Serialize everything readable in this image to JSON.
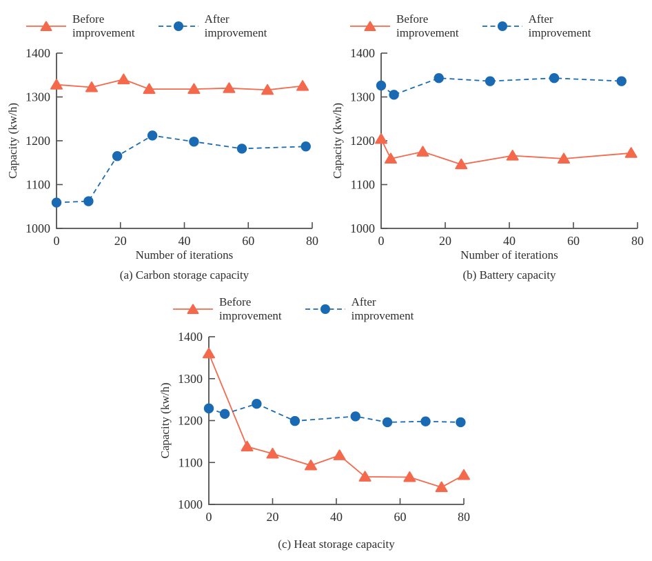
{
  "colors": {
    "before": "#f4694c",
    "after": "#1a6ab3",
    "axis": "#4f4f4f",
    "text": "#2e2e2e",
    "background": "#ffffff"
  },
  "legend": {
    "before_label": "Before\nimprovement",
    "after_label": "After\nimprovement"
  },
  "chart_data": [
    {
      "id": "a",
      "type": "line",
      "caption": "(a) Carbon storage capacity",
      "xlabel": "Number of iterations",
      "ylabel": "Capacity (kw/h)",
      "xlim": [
        0,
        80
      ],
      "ylim": [
        1000,
        1400
      ],
      "xticks": [
        0,
        20,
        40,
        60,
        80
      ],
      "yticks": [
        1000,
        1100,
        1200,
        1300,
        1400
      ],
      "grid": false,
      "legend_position": "top",
      "series": [
        {
          "name": "Before improvement",
          "marker": "triangle",
          "linestyle": "solid",
          "color_key": "before",
          "x": [
            0,
            11,
            21,
            29,
            43,
            54,
            66,
            77
          ],
          "y": [
            1328,
            1322,
            1340,
            1318,
            1318,
            1320,
            1316,
            1325
          ]
        },
        {
          "name": "After improvement",
          "marker": "circle",
          "linestyle": "dashed",
          "color_key": "after",
          "x": [
            0,
            10,
            19,
            30,
            43,
            58,
            78
          ],
          "y": [
            1059,
            1062,
            1165,
            1212,
            1198,
            1182,
            1187
          ]
        }
      ]
    },
    {
      "id": "b",
      "type": "line",
      "caption": "(b) Battery capacity",
      "xlabel": "Number of iterations",
      "ylabel": "Capacity (kw/h)",
      "xlim": [
        0,
        80
      ],
      "ylim": [
        1000,
        1400
      ],
      "xticks": [
        0,
        20,
        40,
        60,
        80
      ],
      "yticks": [
        1000,
        1100,
        1200,
        1300,
        1400
      ],
      "grid": false,
      "legend_position": "top",
      "series": [
        {
          "name": "Before improvement",
          "marker": "triangle",
          "linestyle": "solid",
          "color_key": "before",
          "x": [
            0,
            3,
            13,
            25,
            41,
            57,
            78
          ],
          "y": [
            1204,
            1159,
            1175,
            1146,
            1166,
            1159,
            1172
          ]
        },
        {
          "name": "After improvement",
          "marker": "circle",
          "linestyle": "dashed",
          "color_key": "after",
          "x": [
            0,
            4,
            18,
            34,
            54,
            75
          ],
          "y": [
            1326,
            1305,
            1343,
            1336,
            1343,
            1336
          ]
        }
      ]
    },
    {
      "id": "c",
      "type": "line",
      "caption": "(c) Heat storage capacity",
      "ylabel": "Capacity (kw/h)",
      "xlim": [
        0,
        80
      ],
      "ylim": [
        1000,
        1400
      ],
      "xticks": [
        0,
        20,
        40,
        60,
        80
      ],
      "yticks": [
        1000,
        1100,
        1200,
        1300,
        1400
      ],
      "grid": false,
      "legend_position": "top",
      "series": [
        {
          "name": "Before improvement",
          "marker": "triangle",
          "linestyle": "solid",
          "color_key": "before",
          "x": [
            0,
            12,
            20,
            32,
            41,
            49,
            63,
            73,
            80
          ],
          "y": [
            1360,
            1138,
            1121,
            1093,
            1117,
            1066,
            1065,
            1041,
            1070
          ]
        },
        {
          "name": "After improvement",
          "marker": "circle",
          "linestyle": "dashed",
          "color_key": "after",
          "x": [
            0,
            5,
            15,
            27,
            46,
            56,
            68,
            79
          ],
          "y": [
            1229,
            1216,
            1240,
            1199,
            1210,
            1196,
            1198,
            1196
          ]
        }
      ]
    }
  ]
}
